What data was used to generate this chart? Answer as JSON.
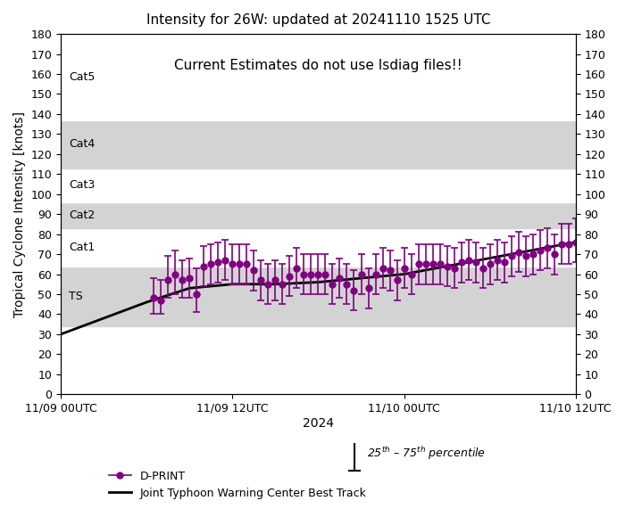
{
  "title": "Intensity for 26W: updated at 20241110 1525 UTC",
  "subtitle": "Current Estimates do not use Isdiag files!!",
  "ylabel": "Tropical Cyclone Intensity [knots]",
  "xlabel": "2024",
  "ylim": [
    0,
    180
  ],
  "yticks": [
    0,
    10,
    20,
    30,
    40,
    50,
    60,
    70,
    80,
    90,
    100,
    110,
    120,
    130,
    140,
    150,
    160,
    170,
    180
  ],
  "category_bands": [
    {
      "label": "TS",
      "ymin": 34,
      "ymax": 64,
      "color": "#d3d3d3"
    },
    {
      "label": "Cat1",
      "ymin": 64,
      "ymax": 83,
      "color": "#ffffff"
    },
    {
      "label": "Cat2",
      "ymin": 83,
      "ymax": 96,
      "color": "#d3d3d3"
    },
    {
      "label": "Cat3",
      "ymin": 96,
      "ymax": 113,
      "color": "#ffffff"
    },
    {
      "label": "Cat4",
      "ymin": 113,
      "ymax": 137,
      "color": "#d3d3d3"
    },
    {
      "label": "Cat5",
      "ymin": 137,
      "ymax": 180,
      "color": "#ffffff"
    }
  ],
  "best_track_x": [
    0.0,
    3.0,
    6.0,
    9.0,
    12.0,
    15.0,
    18.0,
    21.0,
    24.0,
    27.0,
    30.0,
    33.0,
    36.0
  ],
  "best_track_y": [
    30,
    38,
    46,
    53,
    55,
    55,
    56,
    58,
    60,
    64,
    68,
    72,
    76
  ],
  "dprint_x": [
    6.5,
    7.0,
    7.5,
    8.0,
    8.5,
    9.0,
    9.5,
    10.0,
    10.5,
    11.0,
    11.5,
    12.0,
    12.5,
    13.0,
    13.5,
    14.0,
    14.5,
    15.0,
    15.5,
    16.0,
    16.5,
    17.0,
    17.5,
    18.0,
    18.5,
    19.0,
    19.5,
    20.0,
    20.5,
    21.0,
    21.5,
    22.0,
    22.5,
    23.0,
    23.5,
    24.0,
    24.5,
    25.0,
    25.5,
    26.0,
    26.5,
    27.0,
    27.5,
    28.0,
    28.5,
    29.0,
    29.5,
    30.0,
    30.5,
    31.0,
    31.5,
    32.0,
    32.5,
    33.0,
    33.5,
    34.0,
    34.5,
    35.0,
    35.5,
    36.0
  ],
  "dprint_y": [
    48,
    47,
    57,
    60,
    57,
    58,
    50,
    64,
    65,
    66,
    67,
    65,
    65,
    65,
    62,
    57,
    55,
    57,
    55,
    59,
    63,
    60,
    60,
    60,
    60,
    55,
    58,
    55,
    52,
    60,
    53,
    60,
    63,
    62,
    57,
    63,
    60,
    65,
    65,
    65,
    65,
    64,
    63,
    66,
    67,
    66,
    63,
    65,
    67,
    66,
    69,
    71,
    69,
    70,
    72,
    73,
    70,
    75,
    75,
    76
  ],
  "dprint_yerr_low": [
    8,
    7,
    9,
    10,
    9,
    10,
    9,
    10,
    10,
    10,
    10,
    10,
    10,
    10,
    10,
    10,
    10,
    10,
    10,
    10,
    10,
    10,
    10,
    10,
    10,
    10,
    10,
    10,
    10,
    10,
    10,
    10,
    10,
    10,
    10,
    10,
    10,
    10,
    10,
    10,
    10,
    10,
    10,
    10,
    10,
    10,
    10,
    10,
    10,
    10,
    10,
    10,
    10,
    10,
    10,
    10,
    10,
    10,
    10,
    10
  ],
  "dprint_yerr_high": [
    10,
    10,
    12,
    12,
    10,
    10,
    13,
    10,
    10,
    10,
    10,
    10,
    10,
    10,
    10,
    10,
    10,
    10,
    10,
    10,
    10,
    10,
    10,
    10,
    10,
    10,
    10,
    10,
    10,
    10,
    10,
    10,
    10,
    10,
    10,
    10,
    10,
    10,
    10,
    10,
    10,
    10,
    10,
    10,
    10,
    10,
    10,
    10,
    10,
    10,
    10,
    10,
    10,
    10,
    10,
    10,
    10,
    10,
    10,
    12
  ],
  "xtick_positions": [
    0,
    12,
    24,
    36
  ],
  "xtick_labels": [
    "11/09 00UTC",
    "11/09 12UTC",
    "11/10 00UTC",
    "11/10 12UTC"
  ],
  "dprint_color": "#800080",
  "besttrack_color": "#000000"
}
